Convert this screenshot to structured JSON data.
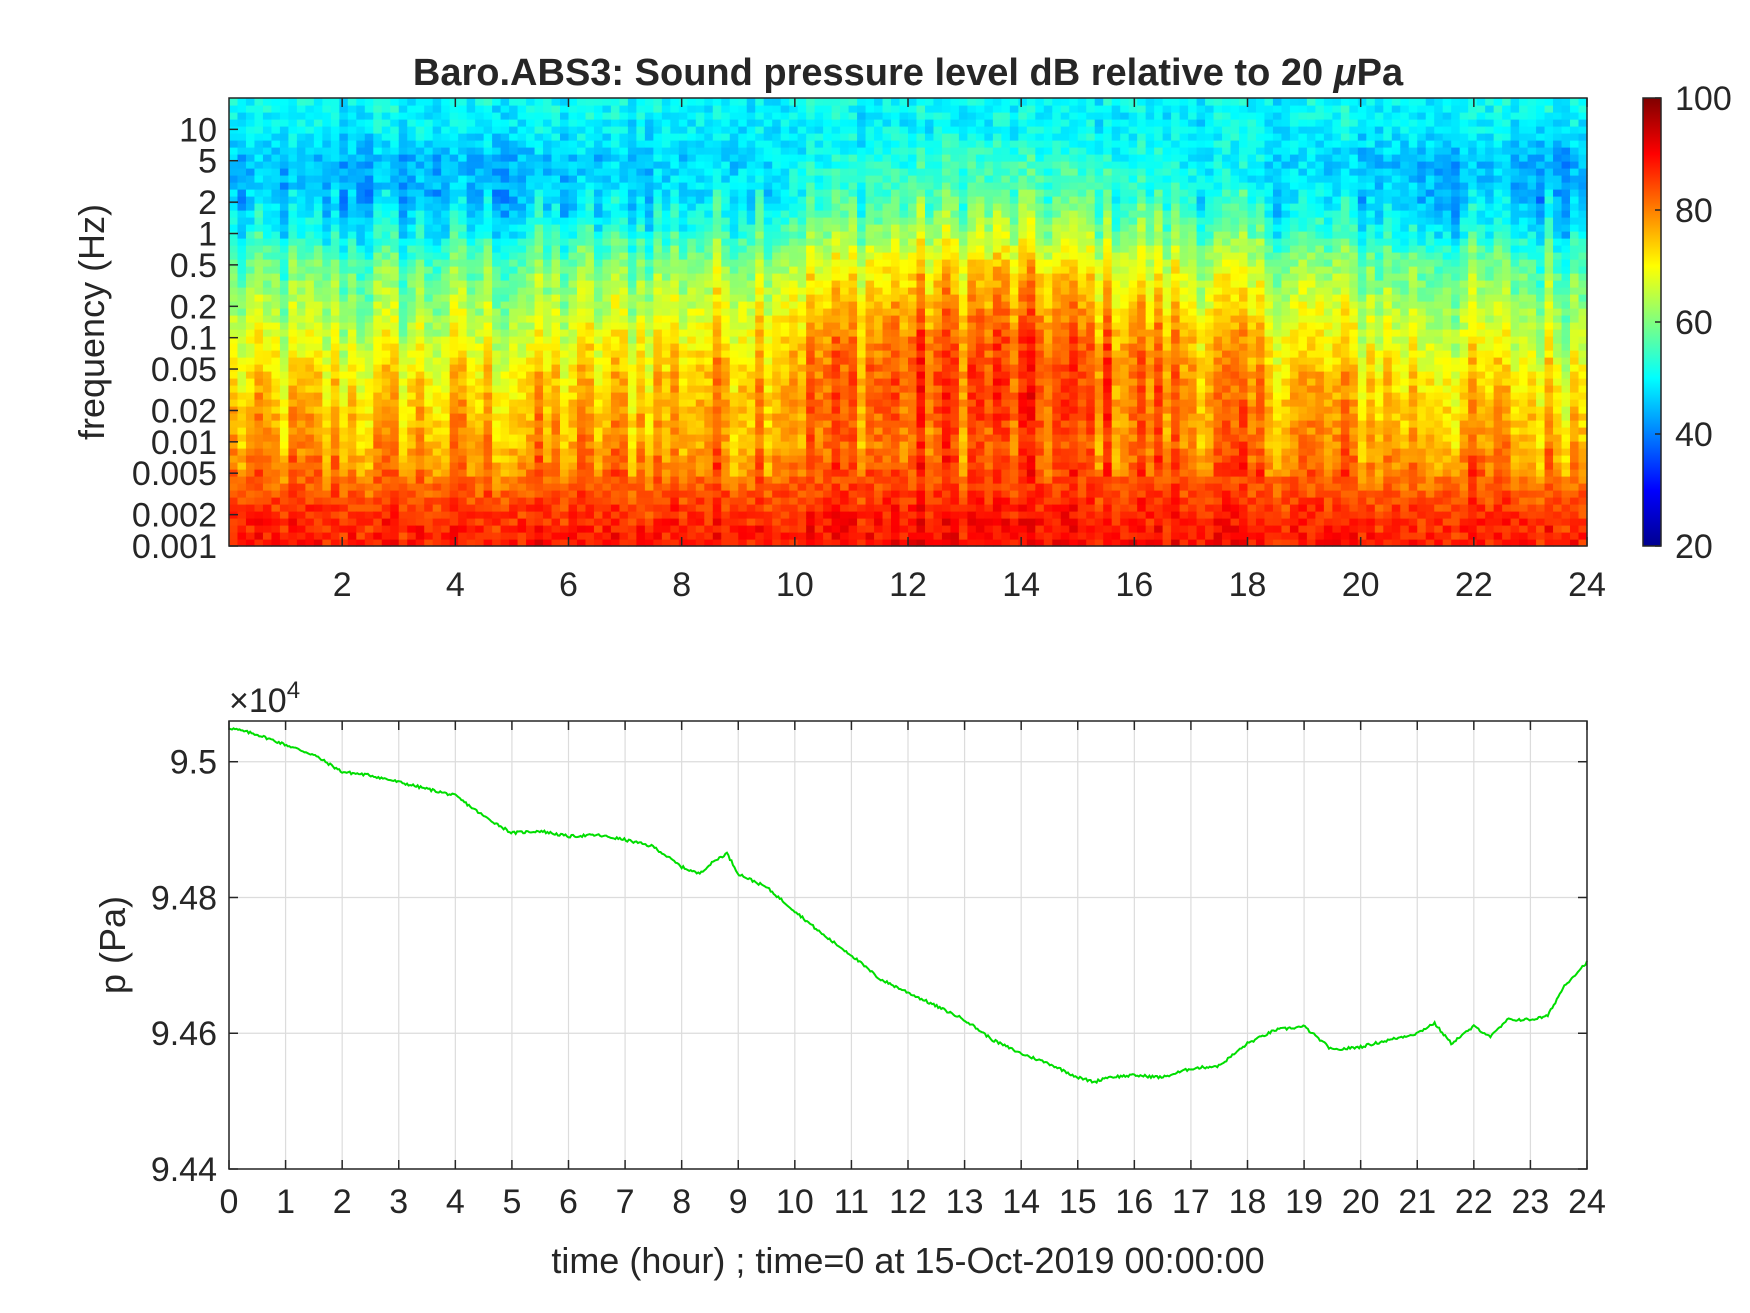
{
  "figure": {
    "title_prefix": "Baro.ABS3: Sound pressure level dB relative to 20 ",
    "title_mu": "μ",
    "title_suffix": "Pa"
  },
  "chart_data": [
    {
      "type": "heatmap",
      "title": "Baro.ABS3: Sound pressure level dB relative to 20 μPa",
      "ylabel": "frequency (Hz)",
      "xlabel": "",
      "y_scale": "log",
      "xlim": [
        0,
        24
      ],
      "ylim": [
        0.001,
        20
      ],
      "x_ticks": [
        2,
        4,
        6,
        8,
        10,
        12,
        14,
        16,
        18,
        20,
        22,
        24
      ],
      "y_ticks": [
        0.001,
        0.002,
        0.005,
        0.01,
        0.02,
        0.05,
        0.1,
        0.2,
        0.5,
        1,
        2,
        5,
        10
      ],
      "y_tick_labels": [
        "0.001",
        "0.002",
        "0.005",
        "0.01",
        "0.02",
        "0.05",
        "0.1",
        "0.2",
        "0.5",
        "1",
        "2",
        "5",
        "10"
      ],
      "colormap": "jet",
      "colorbar": {
        "range": [
          20,
          100
        ],
        "ticks": [
          20,
          40,
          60,
          80,
          100
        ]
      },
      "level_profile": {
        "frequency_hz": [
          0.001,
          0.002,
          0.005,
          0.01,
          0.02,
          0.05,
          0.1,
          0.2,
          0.5,
          1,
          2,
          5,
          10,
          20
        ],
        "level_db_night": [
          88,
          86,
          80,
          76,
          74,
          70,
          66,
          62,
          57,
          50,
          45,
          44,
          49,
          50
        ],
        "level_db_midday": [
          90,
          88,
          84,
          82,
          84,
          84,
          82,
          78,
          72,
          64,
          58,
          54,
          50,
          50
        ]
      }
    },
    {
      "type": "line",
      "title": "",
      "xlabel": "time (hour) ; time=0 at 15-Oct-2019 00:00:00",
      "ylabel": "p (Pa)",
      "xlim": [
        0,
        24
      ],
      "ylim": [
        94400,
        95060
      ],
      "x_ticks": [
        0,
        1,
        2,
        3,
        4,
        5,
        6,
        7,
        8,
        9,
        10,
        11,
        12,
        13,
        14,
        15,
        16,
        17,
        18,
        19,
        20,
        21,
        22,
        23,
        24
      ],
      "y_ticks": [
        94400,
        94600,
        94800,
        95000
      ],
      "y_tick_labels": [
        "9.44",
        "9.46",
        "9.48",
        "9.5"
      ],
      "y_exponent_label": "×10",
      "y_exponent": "4",
      "grid": true,
      "color": "#00dd00",
      "x": [
        0,
        0.5,
        1,
        1.5,
        2,
        2.5,
        3,
        3.5,
        4,
        4.5,
        5,
        5.5,
        6,
        6.5,
        7,
        7.5,
        8,
        8.3,
        8.6,
        8.8,
        9,
        9.5,
        10,
        10.5,
        11,
        11.5,
        12,
        12.5,
        13,
        13.5,
        14,
        14.5,
        15,
        15.3,
        15.5,
        16,
        16.5,
        17,
        17.5,
        18,
        18.5,
        19,
        19.5,
        20,
        20.5,
        21,
        21.3,
        21.6,
        22,
        22.3,
        22.6,
        23,
        23.3,
        23.6,
        24
      ],
      "y": [
        95050,
        95040,
        95025,
        95010,
        94985,
        94980,
        94970,
        94960,
        94950,
        94920,
        94895,
        94898,
        94890,
        94892,
        94885,
        94875,
        94845,
        94835,
        94855,
        94865,
        94835,
        94815,
        94780,
        94745,
        94715,
        94680,
        94660,
        94640,
        94620,
        94590,
        94570,
        94555,
        94535,
        94528,
        94535,
        94538,
        94535,
        94548,
        94552,
        94585,
        94605,
        94610,
        94575,
        94580,
        94590,
        94600,
        94615,
        94585,
        94610,
        94595,
        94620,
        94620,
        94625,
        94670,
        94705
      ]
    }
  ]
}
